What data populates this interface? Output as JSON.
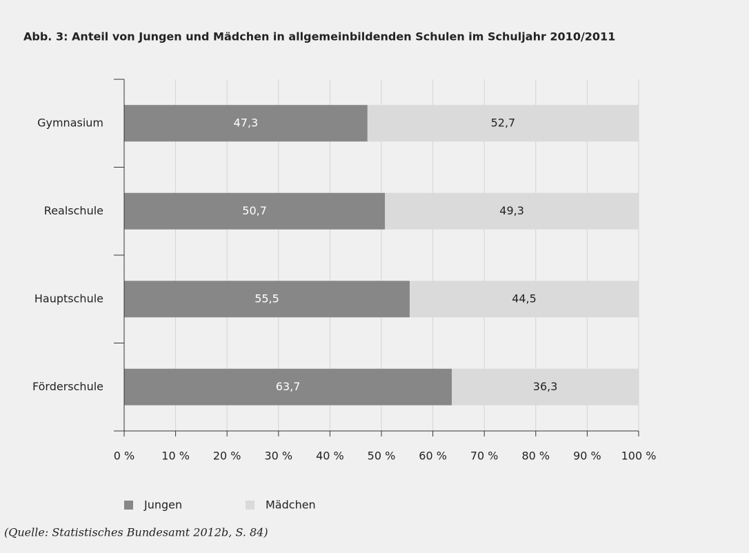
{
  "chart_data": {
    "type": "stacked-bar-horizontal",
    "title": "Abb. 3: Anteil von Jungen und Mädchen in allgemeinbildenden Schulen im Schuljahr 2010/2011",
    "categories": [
      "Gymnasium",
      "Realschule",
      "Hauptschule",
      "Förderschule"
    ],
    "series": [
      {
        "name": "Jungen",
        "color": "#878787",
        "values": [
          47.3,
          50.7,
          55.5,
          63.7
        ],
        "value_labels": [
          "47,3",
          "50,7",
          "55,5",
          "63,7"
        ]
      },
      {
        "name": "Mädchen",
        "color": "#dadada",
        "values": [
          52.7,
          49.3,
          44.5,
          36.3
        ],
        "value_labels": [
          "52,7",
          "49,3",
          "44,5",
          "36,3"
        ]
      }
    ],
    "xlim": [
      0,
      100
    ],
    "xticks": [
      {
        "value": 0,
        "label": "0 %"
      },
      {
        "value": 10,
        "label": "10 %"
      },
      {
        "value": 20,
        "label": "20 %"
      },
      {
        "value": 30,
        "label": "30 %"
      },
      {
        "value": 40,
        "label": "40 %"
      },
      {
        "value": 50,
        "label": "50 %"
      },
      {
        "value": 60,
        "label": "60 %"
      },
      {
        "value": 70,
        "label": "70 %"
      },
      {
        "value": 80,
        "label": "80 %"
      },
      {
        "value": 90,
        "label": "90 %"
      },
      {
        "value": 100,
        "label": "100 %"
      }
    ],
    "grid": true,
    "source": "(Quelle: Statistisches Bundesamt 2012b, S. 84)"
  }
}
